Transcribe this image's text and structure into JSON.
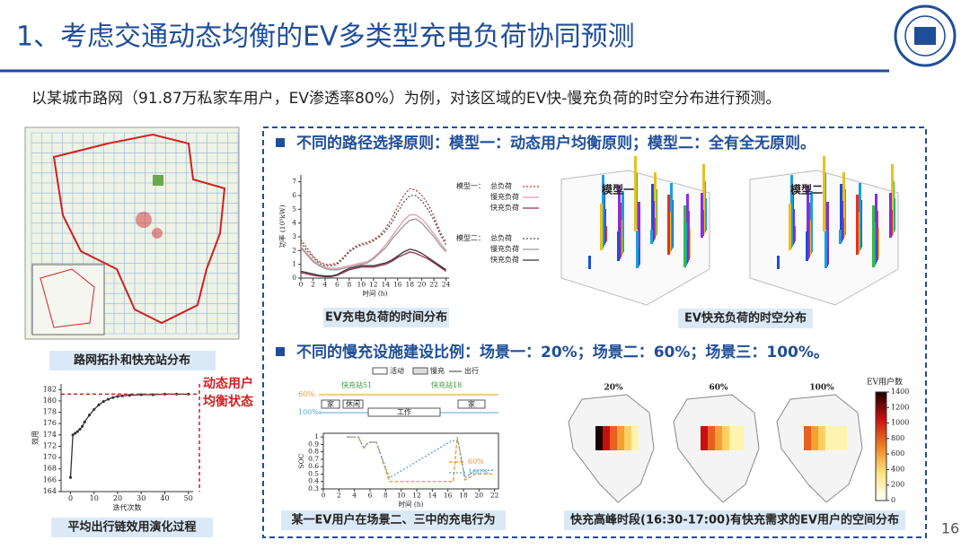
{
  "header": {
    "title": "1、考虑交通动态均衡的EV多类型充电负荷协同预测",
    "page_number": 16
  },
  "intro": "以某城市路网（91.87万私家车用户，EV渗透率80%）为例，对该区域的EV快-慢充负荷的时空分布进行预测。",
  "sections": [
    "不同的路径选择原则：模型一：动态用户均衡原则；模型二：全有全无原则。",
    "不同的慢充设施建设比例：场景一：20%；场景二：60%；场景三：100%。"
  ],
  "map_caption": "路网拓扑和快充站分布",
  "schedule": {
    "legend": [
      "活动",
      "慢充",
      "出行"
    ],
    "rows": [
      "60%:",
      "100%:"
    ],
    "stations": [
      "快充站51",
      "快充站18"
    ],
    "activities": [
      "家",
      "休闲",
      "工作",
      "家"
    ]
  },
  "chart_data": [
    {
      "type": "line",
      "xlabel": "迭代次数",
      "ylabel": "效用",
      "annotation": [
        "动态用户",
        "均衡状态"
      ],
      "caption": "平均出行链效用演化过程",
      "x": [
        0,
        1,
        2,
        3,
        4,
        5,
        6,
        8,
        10,
        12,
        14,
        16,
        18,
        20,
        22,
        25,
        30,
        35,
        40,
        45,
        50
      ],
      "series": [
        {
          "color": "#333333",
          "values": [
            166.5,
            174,
            174.3,
            174.6,
            175,
            175.5,
            176.3,
            177.5,
            178.5,
            179.3,
            179.9,
            180.3,
            180.6,
            180.8,
            180.9,
            181,
            181.1,
            181.1,
            181.2,
            181.2,
            181.2
          ]
        }
      ],
      "xlim": [
        -4,
        52
      ],
      "ylim": [
        164,
        183
      ],
      "xticks": [
        0,
        10,
        20,
        30,
        40,
        50
      ],
      "yticks": [
        164,
        166,
        168,
        170,
        172,
        174,
        176,
        178,
        180,
        182
      ]
    },
    {
      "type": "line",
      "xlabel": "时间 (h)",
      "ylabel": "功率 (10⁵kW)",
      "caption": "EV充电负荷的时间分布",
      "legend_groups": [
        "模型一：",
        "模型二："
      ],
      "x": [
        0,
        1,
        2,
        3,
        4,
        5,
        6,
        7,
        8,
        9,
        10,
        11,
        12,
        13,
        14,
        15,
        16,
        17,
        18,
        19,
        20,
        21,
        22,
        23,
        24
      ],
      "series": [
        {
          "name": "总负荷",
          "color": "#c0392b",
          "dash": "2,2",
          "values": [
            2.8,
            2.2,
            1.6,
            1.2,
            1.0,
            1.0,
            1.1,
            1.5,
            2.0,
            2.3,
            2.5,
            2.6,
            2.8,
            3.1,
            3.6,
            4.3,
            5.2,
            6.0,
            6.5,
            6.4,
            6.0,
            5.4,
            4.5,
            3.4,
            2.6
          ]
        },
        {
          "name": "慢充负荷",
          "color": "#e89aa8",
          "dash": "",
          "values": [
            2.3,
            1.8,
            1.3,
            1.0,
            0.8,
            0.7,
            0.7,
            0.8,
            0.9,
            1.0,
            1.1,
            1.2,
            1.5,
            1.9,
            2.4,
            3.0,
            3.6,
            4.2,
            4.6,
            4.6,
            4.3,
            3.8,
            3.2,
            2.6,
            2.0
          ]
        },
        {
          "name": "快充负荷",
          "color": "#9b2d4a",
          "dash": "",
          "values": [
            0.4,
            0.3,
            0.2,
            0.15,
            0.1,
            0.1,
            0.2,
            0.4,
            0.6,
            0.7,
            0.8,
            0.8,
            0.8,
            0.9,
            1.0,
            1.2,
            1.5,
            1.7,
            1.9,
            1.8,
            1.6,
            1.4,
            1.1,
            0.8,
            0.5
          ]
        },
        {
          "name": "总负荷",
          "color": "#555555",
          "dash": "2,2",
          "values": [
            2.6,
            2.0,
            1.5,
            1.1,
            0.9,
            0.9,
            1.0,
            1.4,
            1.9,
            2.2,
            2.4,
            2.5,
            2.7,
            3.0,
            3.4,
            4.0,
            4.8,
            5.5,
            6.0,
            6.0,
            5.6,
            5.0,
            4.2,
            3.2,
            2.4
          ]
        },
        {
          "name": "慢充负荷",
          "color": "#999999",
          "dash": "",
          "values": [
            2.2,
            1.7,
            1.2,
            0.9,
            0.7,
            0.6,
            0.6,
            0.7,
            0.8,
            0.9,
            1.0,
            1.1,
            1.4,
            1.8,
            2.2,
            2.8,
            3.3,
            3.8,
            4.2,
            4.3,
            4.0,
            3.5,
            3.0,
            2.4,
            1.9
          ]
        },
        {
          "name": "快充负荷",
          "color": "#333333",
          "dash": "",
          "values": [
            0.5,
            0.4,
            0.3,
            0.2,
            0.15,
            0.15,
            0.25,
            0.5,
            0.7,
            0.8,
            0.9,
            0.9,
            0.9,
            1.0,
            1.1,
            1.3,
            1.6,
            1.9,
            2.1,
            2.0,
            1.8,
            1.5,
            1.2,
            0.9,
            0.6
          ]
        }
      ],
      "xlim": [
        0,
        24.5
      ],
      "ylim": [
        0,
        7.5
      ],
      "xticks": [
        0,
        2,
        4,
        6,
        8,
        10,
        12,
        14,
        16,
        18,
        20,
        22,
        24
      ],
      "yticks": [
        0,
        1,
        2,
        3,
        4,
        5,
        6,
        7
      ]
    },
    {
      "type": "line",
      "xlabel": "时间 (h)",
      "ylabel": "SOC",
      "caption": "某一EV用户在场景二、三中的充电行为",
      "series": [
        {
          "name": "60%",
          "color": "#e8962e",
          "dash": "4,2",
          "x": [
            3,
            4.5,
            5.2,
            5.8,
            6.8,
            8.5,
            16.7,
            17.2,
            18.2,
            19.5,
            22
          ],
          "values": [
            1,
            1,
            0.85,
            0.93,
            0.93,
            0.4,
            0.4,
            1,
            0.42,
            0.5,
            0.5
          ]
        },
        {
          "name": "100%",
          "color": "#5ba3d0",
          "dash": "2,2",
          "x": [
            3,
            4.5,
            5.2,
            5.8,
            6.8,
            8.5,
            16.5,
            17.3,
            18.2,
            19.5,
            22
          ],
          "values": [
            1,
            1,
            0.85,
            0.93,
            0.93,
            0.45,
            0.95,
            0.95,
            0.45,
            0.55,
            0.55
          ]
        }
      ],
      "xlim": [
        0,
        22.5
      ],
      "ylim": [
        0.3,
        1.05
      ],
      "xticks": [
        0,
        2,
        4,
        6,
        8,
        10,
        12,
        14,
        16,
        18,
        20,
        22
      ],
      "yticks": [
        0.3,
        0.4,
        0.5,
        0.6,
        0.7,
        0.8,
        0.9,
        1
      ]
    },
    {
      "type": "heatmap",
      "title": "EV用户数",
      "panels": [
        "20%",
        "60%",
        "100%"
      ],
      "caption": "快充高峰时段(16:30-17:00)有快充需求的EV用户的空间分布",
      "zlim": [
        0,
        1400
      ],
      "zticks": [
        0,
        200,
        400,
        600,
        800,
        1000,
        1200,
        1400
      ]
    },
    {
      "type": "bar3d",
      "panels": [
        "模型一",
        "模型二"
      ],
      "caption": "EV快充负荷的时空分布"
    }
  ]
}
